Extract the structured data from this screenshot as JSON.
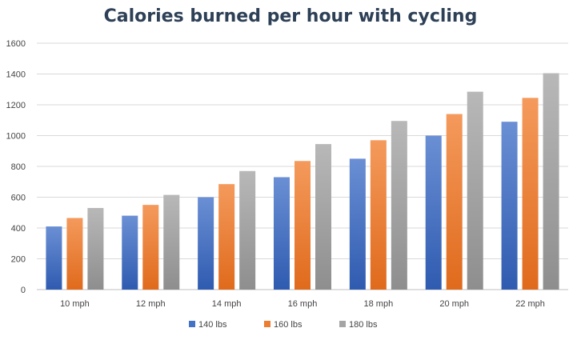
{
  "chart_data": {
    "type": "bar",
    "title": "Calories burned per hour with cycling",
    "xlabel": "",
    "ylabel": "",
    "ylim": [
      0,
      1600
    ],
    "yticks": [
      0,
      200,
      400,
      600,
      800,
      1000,
      1200,
      1400,
      1600
    ],
    "grid": true,
    "legend_position": "bottom",
    "categories": [
      "10 mph",
      "12 mph",
      "14 mph",
      "16 mph",
      "18 mph",
      "20 mph",
      "22 mph"
    ],
    "series": [
      {
        "name": "140 lbs",
        "color": "#4472c4",
        "values": [
          410,
          480,
          600,
          730,
          850,
          1000,
          1090
        ]
      },
      {
        "name": "160 lbs",
        "color": "#ed7d31",
        "values": [
          465,
          550,
          685,
          835,
          970,
          1140,
          1245
        ]
      },
      {
        "name": "180 lbs",
        "color": "#a5a5a5",
        "values": [
          530,
          615,
          770,
          945,
          1095,
          1285,
          1405
        ]
      }
    ]
  }
}
